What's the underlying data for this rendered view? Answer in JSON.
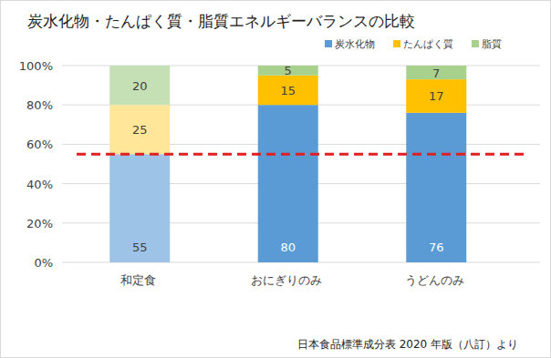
{
  "chart_data": {
    "type": "bar",
    "stacked": true,
    "title": "炭水化物・たんぱく質・脂質エネルギーバランスの比較",
    "categories": [
      "和定食",
      "おにぎりのみ",
      "うどんのみ"
    ],
    "series": [
      {
        "name": "炭水化物",
        "color": "#5b9bd5",
        "colors": [
          "#9dc3e6",
          "#5b9bd5",
          "#5b9bd5"
        ],
        "values": [
          55,
          80,
          76
        ]
      },
      {
        "name": "たんぱく質",
        "color": "#ffc000",
        "colors": [
          "#ffe699",
          "#ffc000",
          "#ffc000"
        ],
        "values": [
          25,
          15,
          17
        ]
      },
      {
        "name": "脂質",
        "color": "#a9d18e",
        "colors": [
          "#c5e0b4",
          "#a9d18e",
          "#a9d18e"
        ],
        "values": [
          20,
          5,
          7
        ]
      }
    ],
    "ylim": [
      0,
      100
    ],
    "yticks": [
      {
        "value": 0,
        "label": "0%"
      },
      {
        "value": 20,
        "label": "20%"
      },
      {
        "value": 40,
        "label": "40%"
      },
      {
        "value": 60,
        "label": "60%"
      },
      {
        "value": 80,
        "label": "80%"
      },
      {
        "value": 100,
        "label": "100%"
      }
    ],
    "grid": true,
    "legend": "top-right",
    "data_labels": true,
    "reference_line": 55,
    "source": "日本食品標準成分表 2020 年版（八訂）より"
  }
}
